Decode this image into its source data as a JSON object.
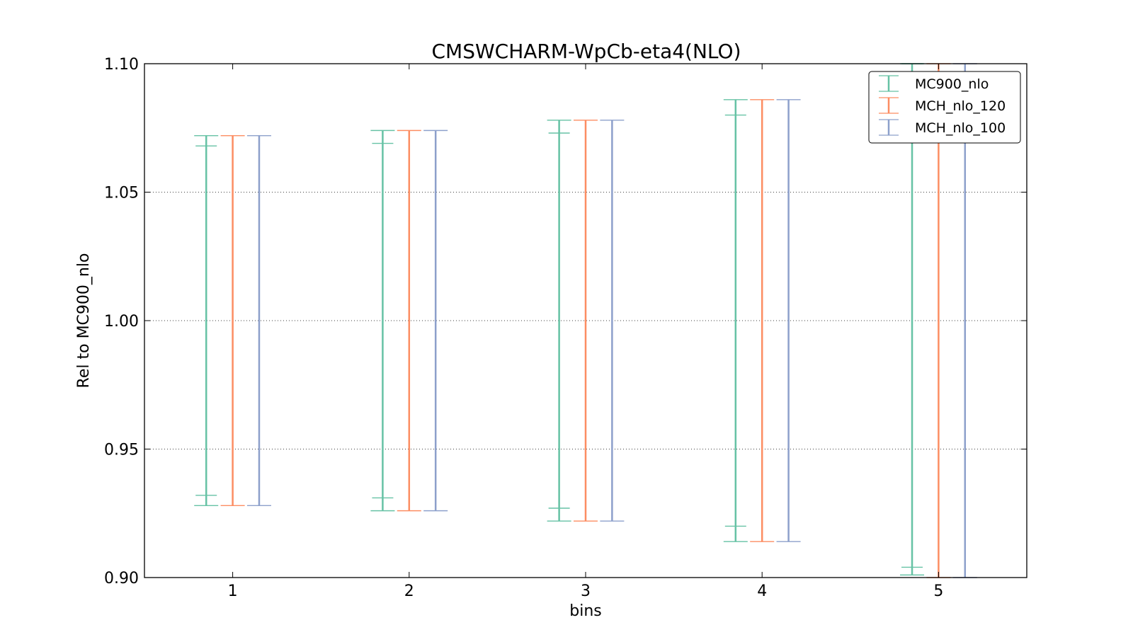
{
  "chart_data": {
    "type": "errorbar",
    "title": "CMSWCHARM-WpCb-eta4(NLO)",
    "xlabel": "bins",
    "ylabel": "Rel to MC900_nlo",
    "xlim": [
      0.5,
      5.5
    ],
    "ylim": [
      0.9,
      1.1
    ],
    "x_ticks": [
      "1",
      "2",
      "3",
      "4",
      "5"
    ],
    "y_ticks": [
      "0.90",
      "0.95",
      "1.00",
      "1.05",
      "1.10"
    ],
    "grid": "horizontal-dotted",
    "legend_position": "top-right",
    "series": [
      {
        "name": "MC900_nlo",
        "color": "#66c2a5",
        "offset": -0.15,
        "outer": [
          [
            0.928,
            1.072
          ],
          [
            0.926,
            1.074
          ],
          [
            0.922,
            1.078
          ],
          [
            0.914,
            1.086
          ],
          [
            0.901,
            1.1
          ]
        ],
        "inner": [
          [
            0.932,
            1.068
          ],
          [
            0.931,
            1.069
          ],
          [
            0.927,
            1.073
          ],
          [
            0.92,
            1.08
          ],
          [
            0.904,
            1.1
          ]
        ]
      },
      {
        "name": "MCH_nlo_120",
        "color": "#fc8d62",
        "offset": 0.0,
        "outer": [
          [
            0.928,
            1.072
          ],
          [
            0.926,
            1.074
          ],
          [
            0.922,
            1.078
          ],
          [
            0.914,
            1.086
          ],
          [
            0.9,
            1.1
          ]
        ]
      },
      {
        "name": "MCH_nlo_100",
        "color": "#8da0cb",
        "offset": 0.15,
        "outer": [
          [
            0.928,
            1.072
          ],
          [
            0.926,
            1.074
          ],
          [
            0.922,
            1.078
          ],
          [
            0.914,
            1.086
          ],
          [
            0.9,
            1.1
          ]
        ]
      }
    ]
  }
}
